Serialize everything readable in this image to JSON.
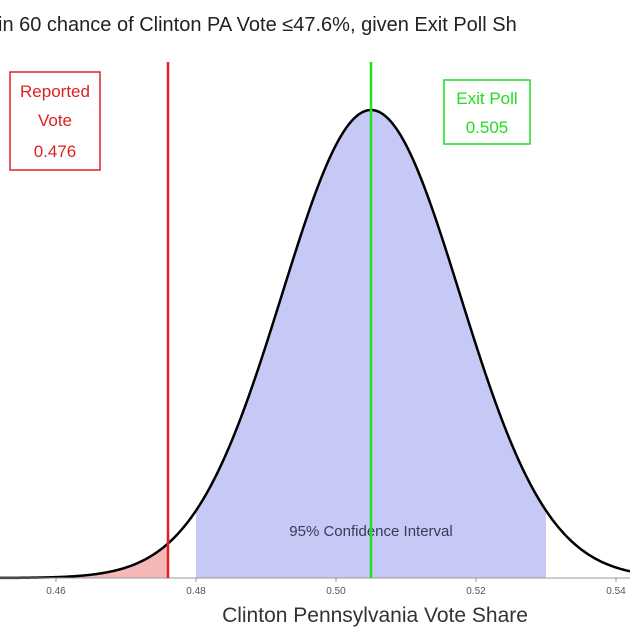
{
  "chart_data": {
    "type": "area",
    "title": "in 60 chance of Clinton PA Vote ≤47.6%, given Exit Poll Sh",
    "xlabel": "Clinton Pennsylvania Vote Share",
    "ylabel": "",
    "distribution": {
      "name": "normal",
      "mean": 0.505,
      "sd": 0.0127
    },
    "xlim": [
      0.452,
      0.542
    ],
    "x_ticks": [
      0.46,
      0.48,
      0.5,
      0.52,
      0.54
    ],
    "x_tick_labels": [
      "0.46",
      "0.48",
      "0.50",
      "0.52",
      "0.54"
    ],
    "confidence_interval": {
      "label": "95% Confidence Interval",
      "low": 0.48,
      "high": 0.53,
      "color": "#c6c8f6"
    },
    "tail_region": {
      "high": 0.476,
      "color": "#f5b8b8"
    },
    "reported": {
      "line1": "Reported",
      "line2": "Vote",
      "value_text": "0.476",
      "value": 0.476,
      "color": "#e02020"
    },
    "exit_poll": {
      "line1": "Exit Poll",
      "value_text": "0.505",
      "value": 0.505,
      "color": "#22dd22"
    },
    "curve_color": "#000000",
    "grid": false
  }
}
